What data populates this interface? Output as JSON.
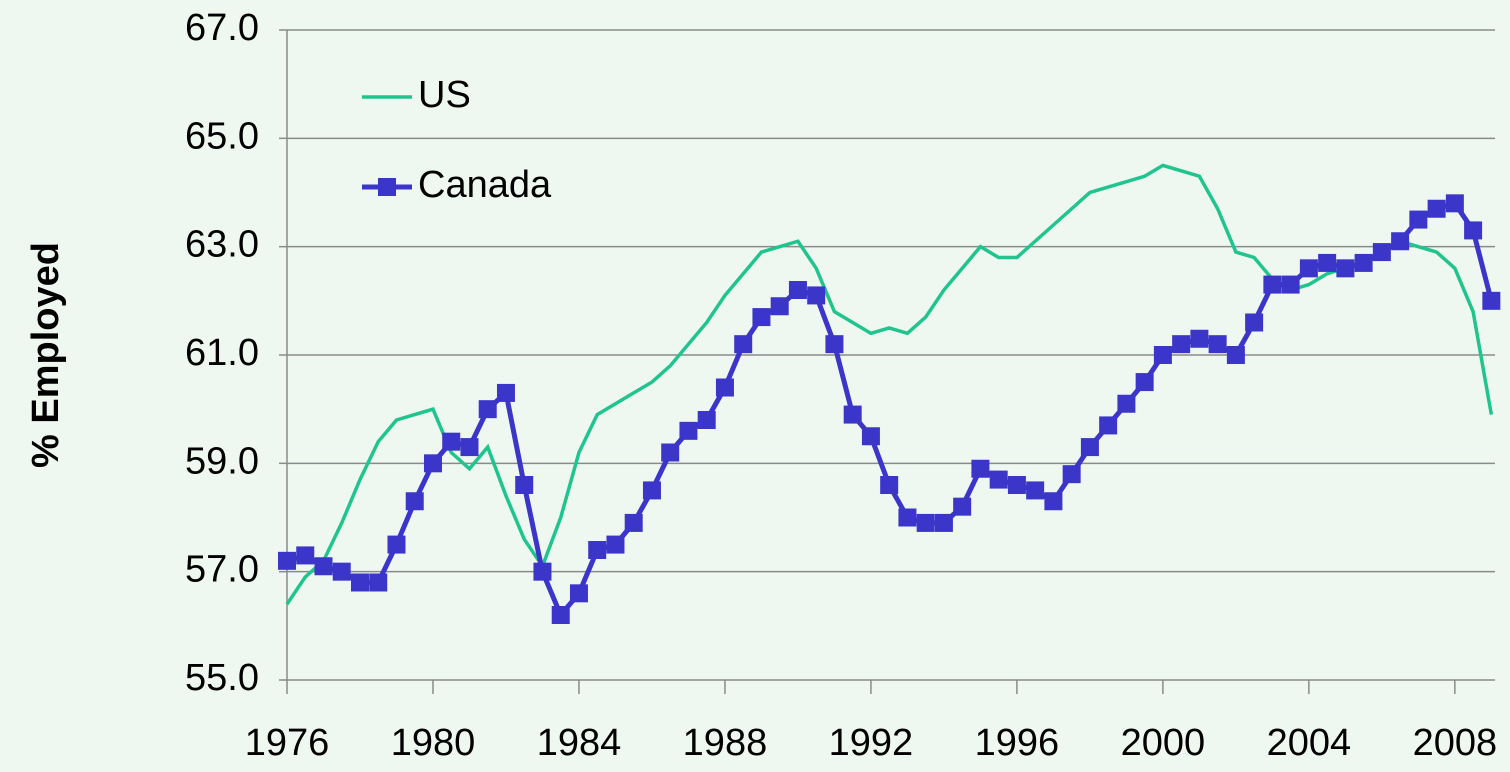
{
  "chart_data": {
    "type": "line",
    "y_label": "% Employed",
    "x": [
      1976.0,
      1976.5,
      1977.0,
      1977.5,
      1978.0,
      1978.5,
      1979.0,
      1979.5,
      1980.0,
      1980.5,
      1981.0,
      1981.5,
      1982.0,
      1982.5,
      1983.0,
      1983.5,
      1984.0,
      1984.5,
      1985.0,
      1985.5,
      1986.0,
      1986.5,
      1987.0,
      1987.5,
      1988.0,
      1988.5,
      1989.0,
      1989.5,
      1990.0,
      1990.5,
      1991.0,
      1991.5,
      1992.0,
      1992.5,
      1993.0,
      1993.5,
      1994.0,
      1994.5,
      1995.0,
      1995.5,
      1996.0,
      1996.5,
      1997.0,
      1997.5,
      1998.0,
      1998.5,
      1999.0,
      1999.5,
      2000.0,
      2000.5,
      2001.0,
      2001.5,
      2002.0,
      2002.5,
      2003.0,
      2003.5,
      2004.0,
      2004.5,
      2005.0,
      2005.5,
      2006.0,
      2006.5,
      2007.0,
      2007.5,
      2008.0,
      2008.5,
      2009.0
    ],
    "series": [
      {
        "name": "US",
        "color": "#20c48e",
        "marker": "none",
        "values": [
          56.4,
          56.9,
          57.2,
          57.9,
          58.7,
          59.4,
          59.8,
          59.9,
          60.0,
          59.2,
          58.9,
          59.3,
          58.4,
          57.6,
          57.1,
          58.0,
          59.2,
          59.9,
          60.1,
          60.3,
          60.5,
          60.8,
          61.2,
          61.6,
          62.1,
          62.5,
          62.9,
          63.0,
          63.1,
          62.6,
          61.8,
          61.6,
          61.4,
          61.5,
          61.4,
          61.7,
          62.2,
          62.6,
          63.0,
          62.8,
          62.8,
          63.1,
          63.4,
          63.7,
          64.0,
          64.1,
          64.2,
          64.3,
          64.5,
          64.4,
          64.3,
          63.7,
          62.9,
          62.8,
          62.4,
          62.2,
          62.3,
          62.5,
          62.6,
          62.7,
          62.9,
          63.1,
          63.0,
          62.9,
          62.6,
          61.8,
          59.9
        ]
      },
      {
        "name": "Canada",
        "color": "#3b36c9",
        "marker": "square",
        "values": [
          57.2,
          57.3,
          57.1,
          57.0,
          56.8,
          56.8,
          57.5,
          58.3,
          59.0,
          59.4,
          59.3,
          60.0,
          60.3,
          58.6,
          57.0,
          56.2,
          56.6,
          57.4,
          57.5,
          57.9,
          58.5,
          59.2,
          59.6,
          59.8,
          60.4,
          61.2,
          61.7,
          61.9,
          62.2,
          62.1,
          61.2,
          59.9,
          59.5,
          58.6,
          58.0,
          57.9,
          57.9,
          58.2,
          58.9,
          58.7,
          58.6,
          58.5,
          58.3,
          58.8,
          59.3,
          59.7,
          60.1,
          60.5,
          61.0,
          61.2,
          61.3,
          61.2,
          61.0,
          61.6,
          62.3,
          62.3,
          62.6,
          62.7,
          62.6,
          62.7,
          62.9,
          63.1,
          63.5,
          63.7,
          63.8,
          63.3,
          62.0
        ]
      }
    ],
    "xlim": [
      1976,
      2009.1
    ],
    "xticks": [
      1976,
      1980,
      1984,
      1988,
      1992,
      1996,
      2000,
      2004,
      2008
    ],
    "ylim": [
      55,
      67
    ],
    "yticks": [
      {
        "value": 55,
        "label": "55.0"
      },
      {
        "value": 57,
        "label": "57.0"
      },
      {
        "value": 59,
        "label": "59.0"
      },
      {
        "value": 61,
        "label": "61.0"
      },
      {
        "value": 63,
        "label": "63.0"
      },
      {
        "value": 65,
        "label": "65.0"
      },
      {
        "value": 67,
        "label": "67.0"
      }
    ],
    "grid": true,
    "legend": "upper left"
  }
}
